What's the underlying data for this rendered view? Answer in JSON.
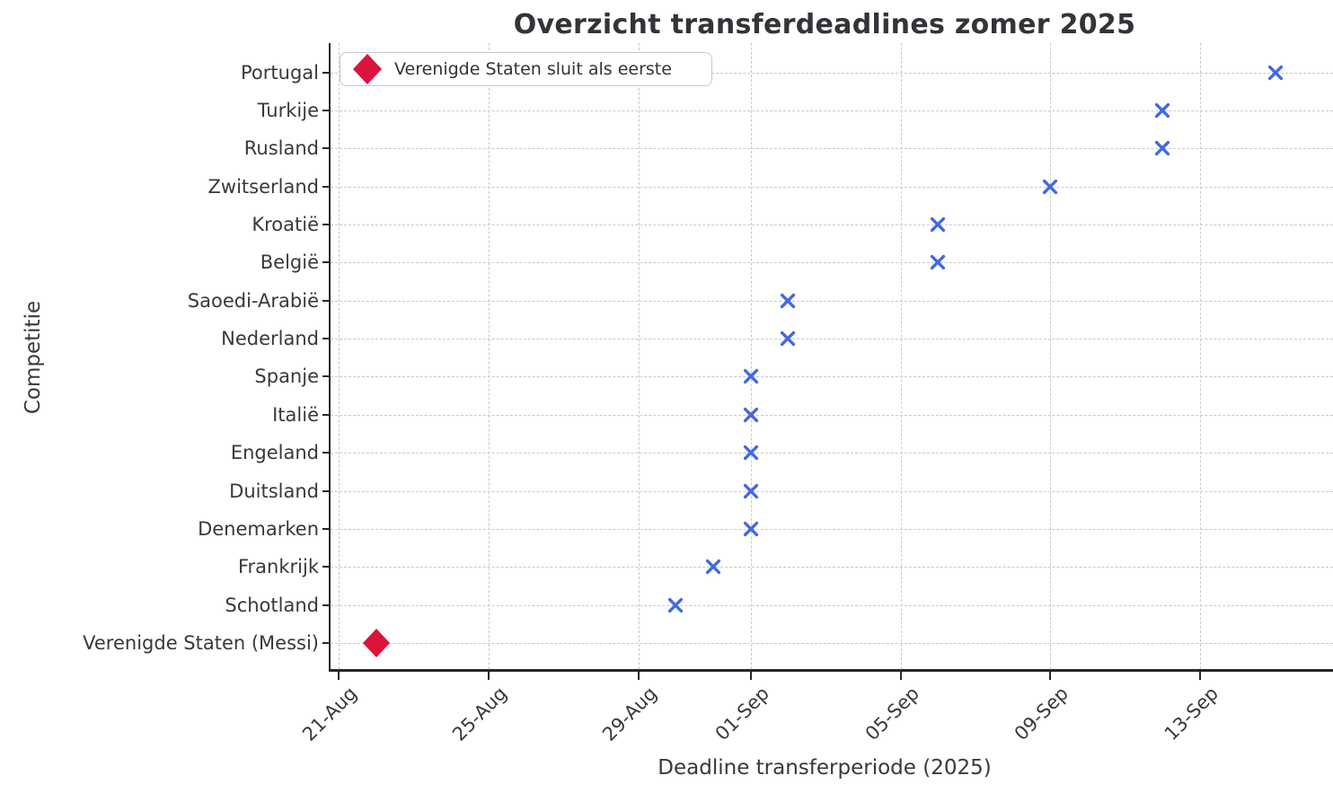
{
  "chart_data": {
    "type": "scatter",
    "title": "Overzicht transferdeadlines zomer 2025",
    "xlabel": "Deadline transferperiode (2025)",
    "ylabel": "Competitie",
    "grid": "dashed, both axes",
    "legend_position": "upper left",
    "legend": [
      {
        "label": "Verenigde Staten sluit als eerste",
        "marker": "diamond",
        "color": "#DC143C"
      }
    ],
    "colors": {
      "x_marker": "#4169E1",
      "diamond_marker": "#DC143C",
      "grid": "#c9c9c9",
      "spine": "#262626",
      "text": "#38383d",
      "title": "#333338"
    },
    "x_axis": {
      "unit": "days after 21-Aug-2025",
      "range_days": [
        -0.22,
        26.55
      ],
      "ticks": [
        {
          "label": "21-Aug",
          "day": 0
        },
        {
          "label": "25-Aug",
          "day": 4
        },
        {
          "label": "29-Aug",
          "day": 8
        },
        {
          "label": "01-Sep",
          "day": 11
        },
        {
          "label": "05-Sep",
          "day": 15
        },
        {
          "label": "09-Sep",
          "day": 19
        },
        {
          "label": "13-Sep",
          "day": 23
        }
      ]
    },
    "categories": [
      "Portugal",
      "Turkije",
      "Rusland",
      "Zwitserland",
      "Kroatië",
      "België",
      "Saoedi-Arabië",
      "Nederland",
      "Spanje",
      "Italië",
      "Engeland",
      "Duitsland",
      "Denemarken",
      "Frankrijk",
      "Schotland",
      "Verenigde Staten (Messi)"
    ],
    "points": [
      {
        "category": "Portugal",
        "date": "15-Sep",
        "day": 25,
        "marker": "x",
        "color": "#4169E1"
      },
      {
        "category": "Turkije",
        "date": "12-Sep",
        "day": 22,
        "marker": "x",
        "color": "#4169E1"
      },
      {
        "category": "Rusland",
        "date": "12-Sep",
        "day": 22,
        "marker": "x",
        "color": "#4169E1"
      },
      {
        "category": "Zwitserland",
        "date": "09-Sep",
        "day": 19,
        "marker": "x",
        "color": "#4169E1"
      },
      {
        "category": "Kroatië",
        "date": "06-Sep",
        "day": 16,
        "marker": "x",
        "color": "#4169E1"
      },
      {
        "category": "België",
        "date": "06-Sep",
        "day": 16,
        "marker": "x",
        "color": "#4169E1"
      },
      {
        "category": "Saoedi-Arabië",
        "date": "02-Sep",
        "day": 12,
        "marker": "x",
        "color": "#4169E1"
      },
      {
        "category": "Nederland",
        "date": "02-Sep",
        "day": 12,
        "marker": "x",
        "color": "#4169E1"
      },
      {
        "category": "Spanje",
        "date": "01-Sep",
        "day": 11,
        "marker": "x",
        "color": "#4169E1"
      },
      {
        "category": "Italië",
        "date": "01-Sep",
        "day": 11,
        "marker": "x",
        "color": "#4169E1"
      },
      {
        "category": "Engeland",
        "date": "01-Sep",
        "day": 11,
        "marker": "x",
        "color": "#4169E1"
      },
      {
        "category": "Duitsland",
        "date": "01-Sep",
        "day": 11,
        "marker": "x",
        "color": "#4169E1"
      },
      {
        "category": "Denemarken",
        "date": "01-Sep",
        "day": 11,
        "marker": "x",
        "color": "#4169E1"
      },
      {
        "category": "Frankrijk",
        "date": "31-Aug",
        "day": 10,
        "marker": "x",
        "color": "#4169E1"
      },
      {
        "category": "Schotland",
        "date": "30-Aug",
        "day": 9,
        "marker": "x",
        "color": "#4169E1"
      },
      {
        "category": "Verenigde Staten (Messi)",
        "date": "22-Aug",
        "day": 1,
        "marker": "diamond",
        "color": "#DC143C"
      }
    ]
  }
}
